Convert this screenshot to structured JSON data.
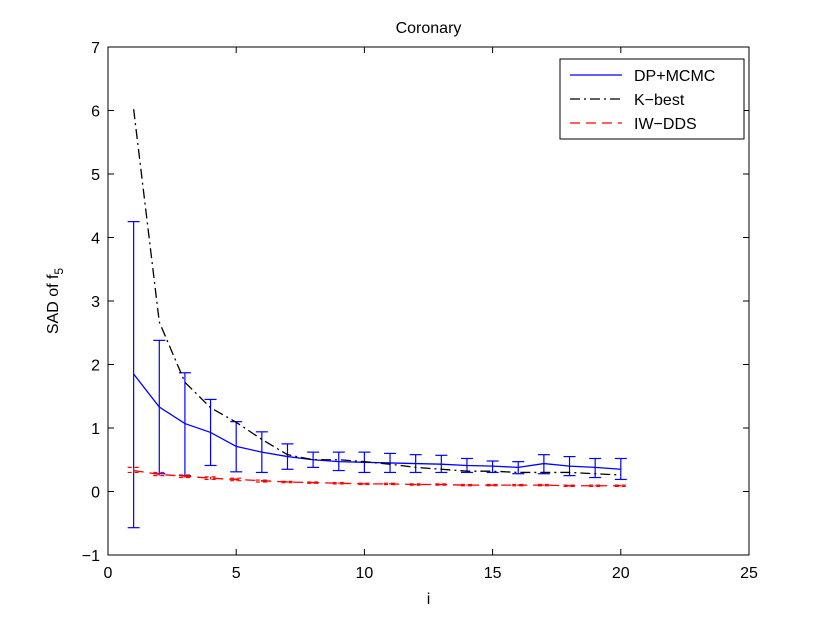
{
  "chart_data": {
    "type": "line",
    "title": "Coronary",
    "xlabel": "i",
    "ylabel": "SAD of f",
    "ylabel_subscript": "5",
    "xlim": [
      0,
      25
    ],
    "ylim": [
      -1,
      7
    ],
    "xticks": [
      0,
      5,
      10,
      15,
      20,
      25
    ],
    "yticks": [
      -1,
      0,
      1,
      2,
      3,
      4,
      5,
      6,
      7
    ],
    "grid": false,
    "legend_position": "top-right",
    "series": [
      {
        "name": "DP+MCMC",
        "color": "#0000ff",
        "style": "solid",
        "x": [
          1,
          2,
          3,
          4,
          5,
          6,
          7,
          8,
          9,
          10,
          11,
          12,
          13,
          14,
          15,
          16,
          17,
          18,
          19,
          20
        ],
        "y": [
          1.85,
          1.33,
          1.07,
          0.93,
          0.71,
          0.62,
          0.55,
          0.5,
          0.47,
          0.46,
          0.45,
          0.44,
          0.43,
          0.41,
          0.4,
          0.38,
          0.44,
          0.4,
          0.38,
          0.35
        ],
        "err_low": [
          -0.57,
          0.28,
          0.25,
          0.41,
          0.31,
          0.3,
          0.35,
          0.38,
          0.33,
          0.3,
          0.3,
          0.3,
          0.3,
          0.3,
          0.3,
          0.28,
          0.28,
          0.25,
          0.22,
          0.19
        ],
        "err_high": [
          4.25,
          2.38,
          1.87,
          1.45,
          1.1,
          0.94,
          0.75,
          0.62,
          0.62,
          0.62,
          0.6,
          0.58,
          0.57,
          0.52,
          0.48,
          0.47,
          0.58,
          0.55,
          0.52,
          0.52
        ]
      },
      {
        "name": "K−best",
        "color": "#000000",
        "style": "dashdot",
        "x": [
          1,
          2,
          3,
          4,
          5,
          6,
          7,
          8,
          9,
          10,
          11,
          12,
          13,
          14,
          15,
          16,
          17,
          18,
          19,
          20
        ],
        "y": [
          6.02,
          2.67,
          1.72,
          1.32,
          1.09,
          0.82,
          0.58,
          0.5,
          0.5,
          0.47,
          0.43,
          0.38,
          0.35,
          0.32,
          0.32,
          0.3,
          0.3,
          0.3,
          0.28,
          0.26
        ]
      },
      {
        "name": "IW−DDS",
        "color": "#ff0000",
        "style": "dashed",
        "x": [
          1,
          2,
          3,
          4,
          5,
          6,
          7,
          8,
          9,
          10,
          11,
          12,
          13,
          14,
          15,
          16,
          17,
          18,
          19,
          20
        ],
        "y": [
          0.33,
          0.27,
          0.24,
          0.21,
          0.19,
          0.17,
          0.15,
          0.14,
          0.13,
          0.12,
          0.12,
          0.11,
          0.11,
          0.1,
          0.1,
          0.1,
          0.1,
          0.09,
          0.09,
          0.09
        ],
        "err_low": [
          0.3,
          0.25,
          0.22,
          0.19,
          0.17,
          0.15,
          0.14,
          0.13,
          0.12,
          0.11,
          0.11,
          0.1,
          0.1,
          0.09,
          0.09,
          0.09,
          0.09,
          0.08,
          0.08,
          0.08
        ],
        "err_high": [
          0.38,
          0.3,
          0.26,
          0.23,
          0.21,
          0.18,
          0.16,
          0.15,
          0.14,
          0.13,
          0.13,
          0.12,
          0.12,
          0.11,
          0.11,
          0.11,
          0.11,
          0.1,
          0.1,
          0.1
        ]
      }
    ]
  }
}
